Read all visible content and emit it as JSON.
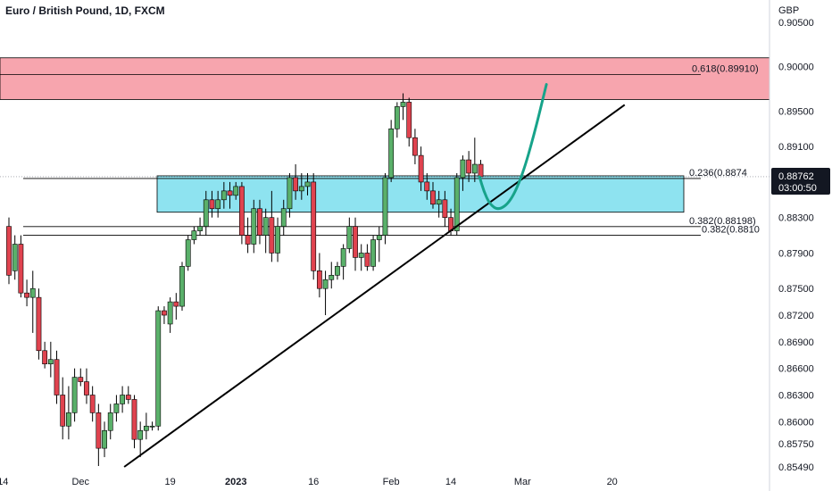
{
  "title": "Euro / British Pound, 1D, FXCM",
  "currency": "GBP",
  "current_price": "0.88762",
  "countdown": "03:00:50",
  "colors": {
    "up": "#26a69a",
    "up_fill": "#5ab06a",
    "down": "#e0434f",
    "red_zone": "#f7a5ae",
    "blue_zone": "#8ee3f0",
    "curve": "#17a38a",
    "line": "#000000",
    "badge": "#131722"
  },
  "chart_data": {
    "type": "candlestick",
    "title": "Euro / British Pound, 1D, FXCM",
    "ylim": [
      0.8545,
      0.907
    ],
    "y_ticks": [
      "0.90500",
      "0.90000",
      "0.89500",
      "0.89100",
      "0.88300",
      "0.87900",
      "0.87500",
      "0.87200",
      "0.86900",
      "0.86600",
      "0.86300",
      "0.86000",
      "0.85750",
      "0.85490"
    ],
    "y_tick_values": [
      0.905,
      0.9,
      0.895,
      0.891,
      0.883,
      0.879,
      0.875,
      0.872,
      0.869,
      0.866,
      0.863,
      0.86,
      0.8575,
      0.8549
    ],
    "x_ticks": [
      {
        "label": "14",
        "bar": -1
      },
      {
        "label": "Dec",
        "bar": 12
      },
      {
        "label": "19",
        "bar": 27
      },
      {
        "label": "2023",
        "bar": 38
      },
      {
        "label": "16",
        "bar": 51
      },
      {
        "label": "Feb",
        "bar": 64
      },
      {
        "label": "14",
        "bar": 74
      },
      {
        "label": "Mar",
        "bar": 86
      },
      {
        "label": "20",
        "bar": 101
      }
    ],
    "candles": [
      [
        0.882,
        0.883,
        0.8755,
        0.8765
      ],
      [
        0.877,
        0.881,
        0.876,
        0.88
      ],
      [
        0.88,
        0.881,
        0.874,
        0.8745
      ],
      [
        0.8745,
        0.876,
        0.873,
        0.874
      ],
      [
        0.874,
        0.877,
        0.87,
        0.875
      ],
      [
        0.874,
        0.875,
        0.867,
        0.868
      ],
      [
        0.868,
        0.869,
        0.866,
        0.8665
      ],
      [
        0.8665,
        0.869,
        0.865,
        0.867
      ],
      [
        0.867,
        0.868,
        0.862,
        0.863
      ],
      [
        0.863,
        0.865,
        0.858,
        0.8595
      ],
      [
        0.8595,
        0.864,
        0.858,
        0.861
      ],
      [
        0.861,
        0.866,
        0.86,
        0.865
      ],
      [
        0.865,
        0.866,
        0.864,
        0.8645
      ],
      [
        0.8645,
        0.866,
        0.862,
        0.863
      ],
      [
        0.863,
        0.864,
        0.86,
        0.861
      ],
      [
        0.861,
        0.862,
        0.855,
        0.857
      ],
      [
        0.857,
        0.86,
        0.856,
        0.859
      ],
      [
        0.859,
        0.862,
        0.858,
        0.861
      ],
      [
        0.861,
        0.863,
        0.86,
        0.862
      ],
      [
        0.862,
        0.864,
        0.861,
        0.863
      ],
      [
        0.863,
        0.864,
        0.862,
        0.8625
      ],
      [
        0.8625,
        0.863,
        0.857,
        0.858
      ],
      [
        0.858,
        0.86,
        0.856,
        0.859
      ],
      [
        0.859,
        0.861,
        0.858,
        0.8595
      ],
      [
        0.8595,
        0.86,
        0.859,
        0.8595
      ],
      [
        0.8595,
        0.873,
        0.859,
        0.8725
      ],
      [
        0.8725,
        0.873,
        0.871,
        0.872
      ],
      [
        0.871,
        0.874,
        0.87,
        0.8735
      ],
      [
        0.8735,
        0.8745,
        0.8715,
        0.873
      ],
      [
        0.873,
        0.878,
        0.8725,
        0.8775
      ],
      [
        0.8775,
        0.881,
        0.877,
        0.8805
      ],
      [
        0.8805,
        0.882,
        0.88,
        0.8815
      ],
      [
        0.8815,
        0.883,
        0.881,
        0.882
      ],
      [
        0.882,
        0.886,
        0.881,
        0.885
      ],
      [
        0.885,
        0.886,
        0.883,
        0.884
      ],
      [
        0.884,
        0.886,
        0.883,
        0.885
      ],
      [
        0.885,
        0.887,
        0.884,
        0.886
      ],
      [
        0.886,
        0.887,
        0.884,
        0.8855
      ],
      [
        0.8855,
        0.887,
        0.885,
        0.8865
      ],
      [
        0.8865,
        0.887,
        0.88,
        0.881
      ],
      [
        0.881,
        0.883,
        0.879,
        0.88
      ],
      [
        0.88,
        0.885,
        0.879,
        0.884
      ],
      [
        0.884,
        0.885,
        0.88,
        0.881
      ],
      [
        0.881,
        0.884,
        0.879,
        0.883
      ],
      [
        0.883,
        0.886,
        0.878,
        0.879
      ],
      [
        0.879,
        0.883,
        0.878,
        0.882
      ],
      [
        0.882,
        0.885,
        0.881,
        0.884
      ],
      [
        0.884,
        0.888,
        0.883,
        0.8875
      ],
      [
        0.8875,
        0.889,
        0.885,
        0.886
      ],
      [
        0.886,
        0.888,
        0.885,
        0.8865
      ],
      [
        0.8865,
        0.888,
        0.8855,
        0.887
      ],
      [
        0.887,
        0.888,
        0.876,
        0.877
      ],
      [
        0.877,
        0.879,
        0.874,
        0.875
      ],
      [
        0.875,
        0.877,
        0.872,
        0.876
      ],
      [
        0.876,
        0.878,
        0.875,
        0.8765
      ],
      [
        0.8765,
        0.878,
        0.876,
        0.8775
      ],
      [
        0.8775,
        0.88,
        0.876,
        0.8795
      ],
      [
        0.8795,
        0.883,
        0.879,
        0.882
      ],
      [
        0.882,
        0.883,
        0.877,
        0.8785
      ],
      [
        0.8785,
        0.88,
        0.877,
        0.879
      ],
      [
        0.879,
        0.88,
        0.877,
        0.8775
      ],
      [
        0.8775,
        0.881,
        0.877,
        0.8805
      ],
      [
        0.8805,
        0.882,
        0.878,
        0.881
      ],
      [
        0.881,
        0.888,
        0.88,
        0.8875
      ],
      [
        0.8875,
        0.894,
        0.887,
        0.893
      ],
      [
        0.893,
        0.896,
        0.892,
        0.8955
      ],
      [
        0.8955,
        0.897,
        0.894,
        0.896
      ],
      [
        0.896,
        0.8965,
        0.891,
        0.892
      ],
      [
        0.892,
        0.893,
        0.889,
        0.89
      ],
      [
        0.89,
        0.891,
        0.886,
        0.887
      ],
      [
        0.887,
        0.888,
        0.885,
        0.886
      ],
      [
        0.886,
        0.887,
        0.884,
        0.8845
      ],
      [
        0.8845,
        0.886,
        0.883,
        0.885
      ],
      [
        0.885,
        0.886,
        0.882,
        0.883
      ],
      [
        0.883,
        0.884,
        0.881,
        0.8815
      ],
      [
        0.8815,
        0.888,
        0.881,
        0.8875
      ],
      [
        0.8875,
        0.89,
        0.886,
        0.8895
      ],
      [
        0.8895,
        0.8905,
        0.887,
        0.888
      ],
      [
        0.888,
        0.892,
        0.887,
        0.889
      ],
      [
        0.889,
        0.8895,
        0.887,
        0.8876
      ]
    ],
    "fib_levels": [
      {
        "label": "0.618(0.89910)",
        "value": 0.8991
      },
      {
        "label": "0.236(0.8874",
        "value": 0.8874
      },
      {
        "label": "0.382(0.88198)",
        "value": 0.88198
      },
      {
        "label": "0.382(0.8810",
        "value": 0.881
      }
    ],
    "red_zone": [
      0.8963,
      0.901
    ],
    "blue_zone": [
      0.8836,
      0.8877
    ],
    "trendline": {
      "x1": 19.3,
      "y1": 0.8549,
      "x2": 103.1,
      "y2": 0.8957
    },
    "projection": [
      [
        78.8,
        0.8876
      ],
      [
        79.5,
        0.886
      ],
      [
        80.5,
        0.8845
      ],
      [
        82,
        0.8838
      ],
      [
        84,
        0.8848
      ],
      [
        86,
        0.8878
      ],
      [
        88,
        0.8925
      ],
      [
        90,
        0.898
      ]
    ]
  }
}
